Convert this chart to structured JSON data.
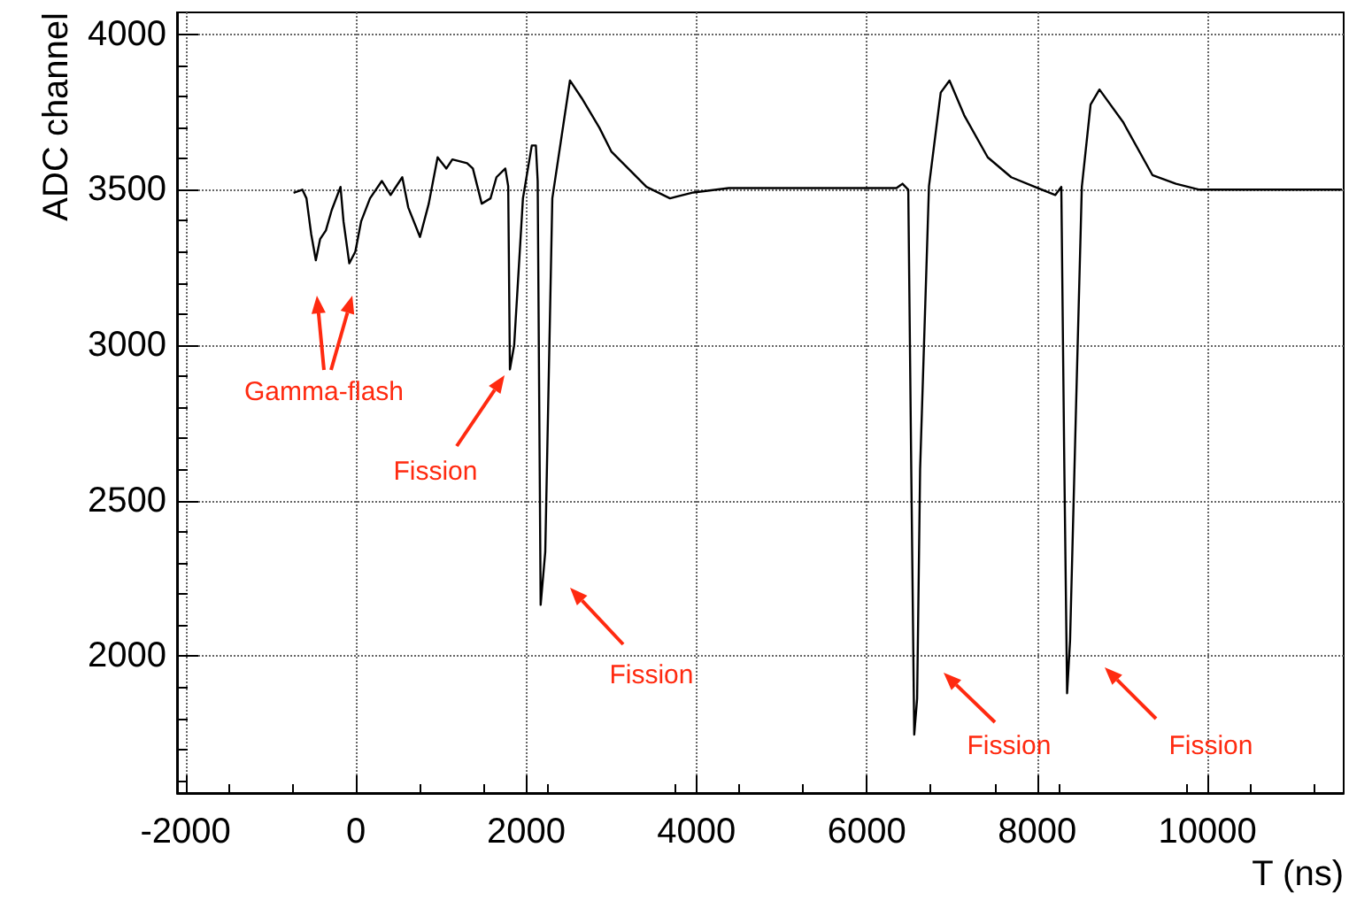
{
  "chart_data": {
    "type": "line",
    "xlabel": "T (ns)",
    "ylabel": "ADC channel",
    "xlim": [
      -2100,
      11600
    ],
    "xticks": [
      -2000,
      0,
      2000,
      4000,
      6000,
      8000,
      10000
    ],
    "ylim": [
      1560,
      4070
    ],
    "yticks": [
      2000,
      2500,
      3000,
      3500,
      4000
    ],
    "grid": true,
    "marker": "none",
    "line_style": "solid",
    "series": [
      {
        "color": "#000000",
        "x": [
          -732,
          -628,
          -580,
          -525,
          -470,
          -420,
          -352,
          -284,
          -180,
          -145,
          -77,
          -6,
          62,
          166,
          305,
          408,
          545,
          615,
          753,
          856,
          960,
          1063,
          1133,
          1306,
          1374,
          1478,
          1581,
          1651,
          1755,
          1789,
          1809,
          1859,
          1962,
          2066,
          2114,
          2135,
          2170,
          2224,
          2307,
          2514,
          2653,
          2860,
          2999,
          3206,
          3413,
          3689,
          3965,
          4379,
          6348,
          6419,
          6487,
          6522,
          6557,
          6591,
          6626,
          6730,
          6868,
          6971,
          7144,
          7420,
          7696,
          7973,
          8214,
          8284,
          8319,
          8352,
          8387,
          8456,
          8525,
          8628,
          8732,
          9008,
          9354,
          9630,
          9907,
          11580
        ],
        "values": [
          3490,
          3500,
          3472,
          3358,
          3273,
          3341,
          3369,
          3434,
          3509,
          3398,
          3263,
          3301,
          3398,
          3472,
          3528,
          3483,
          3540,
          3443,
          3348,
          3455,
          3604,
          3568,
          3597,
          3585,
          3568,
          3455,
          3472,
          3540,
          3568,
          3511,
          2922,
          3000,
          3472,
          3642,
          3642,
          3528,
          2165,
          2335,
          3472,
          3851,
          3794,
          3699,
          3623,
          3566,
          3509,
          3472,
          3491,
          3505,
          3505,
          3519,
          3500,
          2601,
          1748,
          1864,
          2602,
          3511,
          3812,
          3851,
          3739,
          3604,
          3540,
          3509,
          3483,
          3509,
          2619,
          1881,
          2051,
          2790,
          3509,
          3774,
          3822,
          3718,
          3547,
          3519,
          3500,
          3500
        ]
      }
    ],
    "annotations": [
      "Gamma-flash",
      "Fission",
      "Fission",
      "Fission",
      "Fission"
    ]
  }
}
